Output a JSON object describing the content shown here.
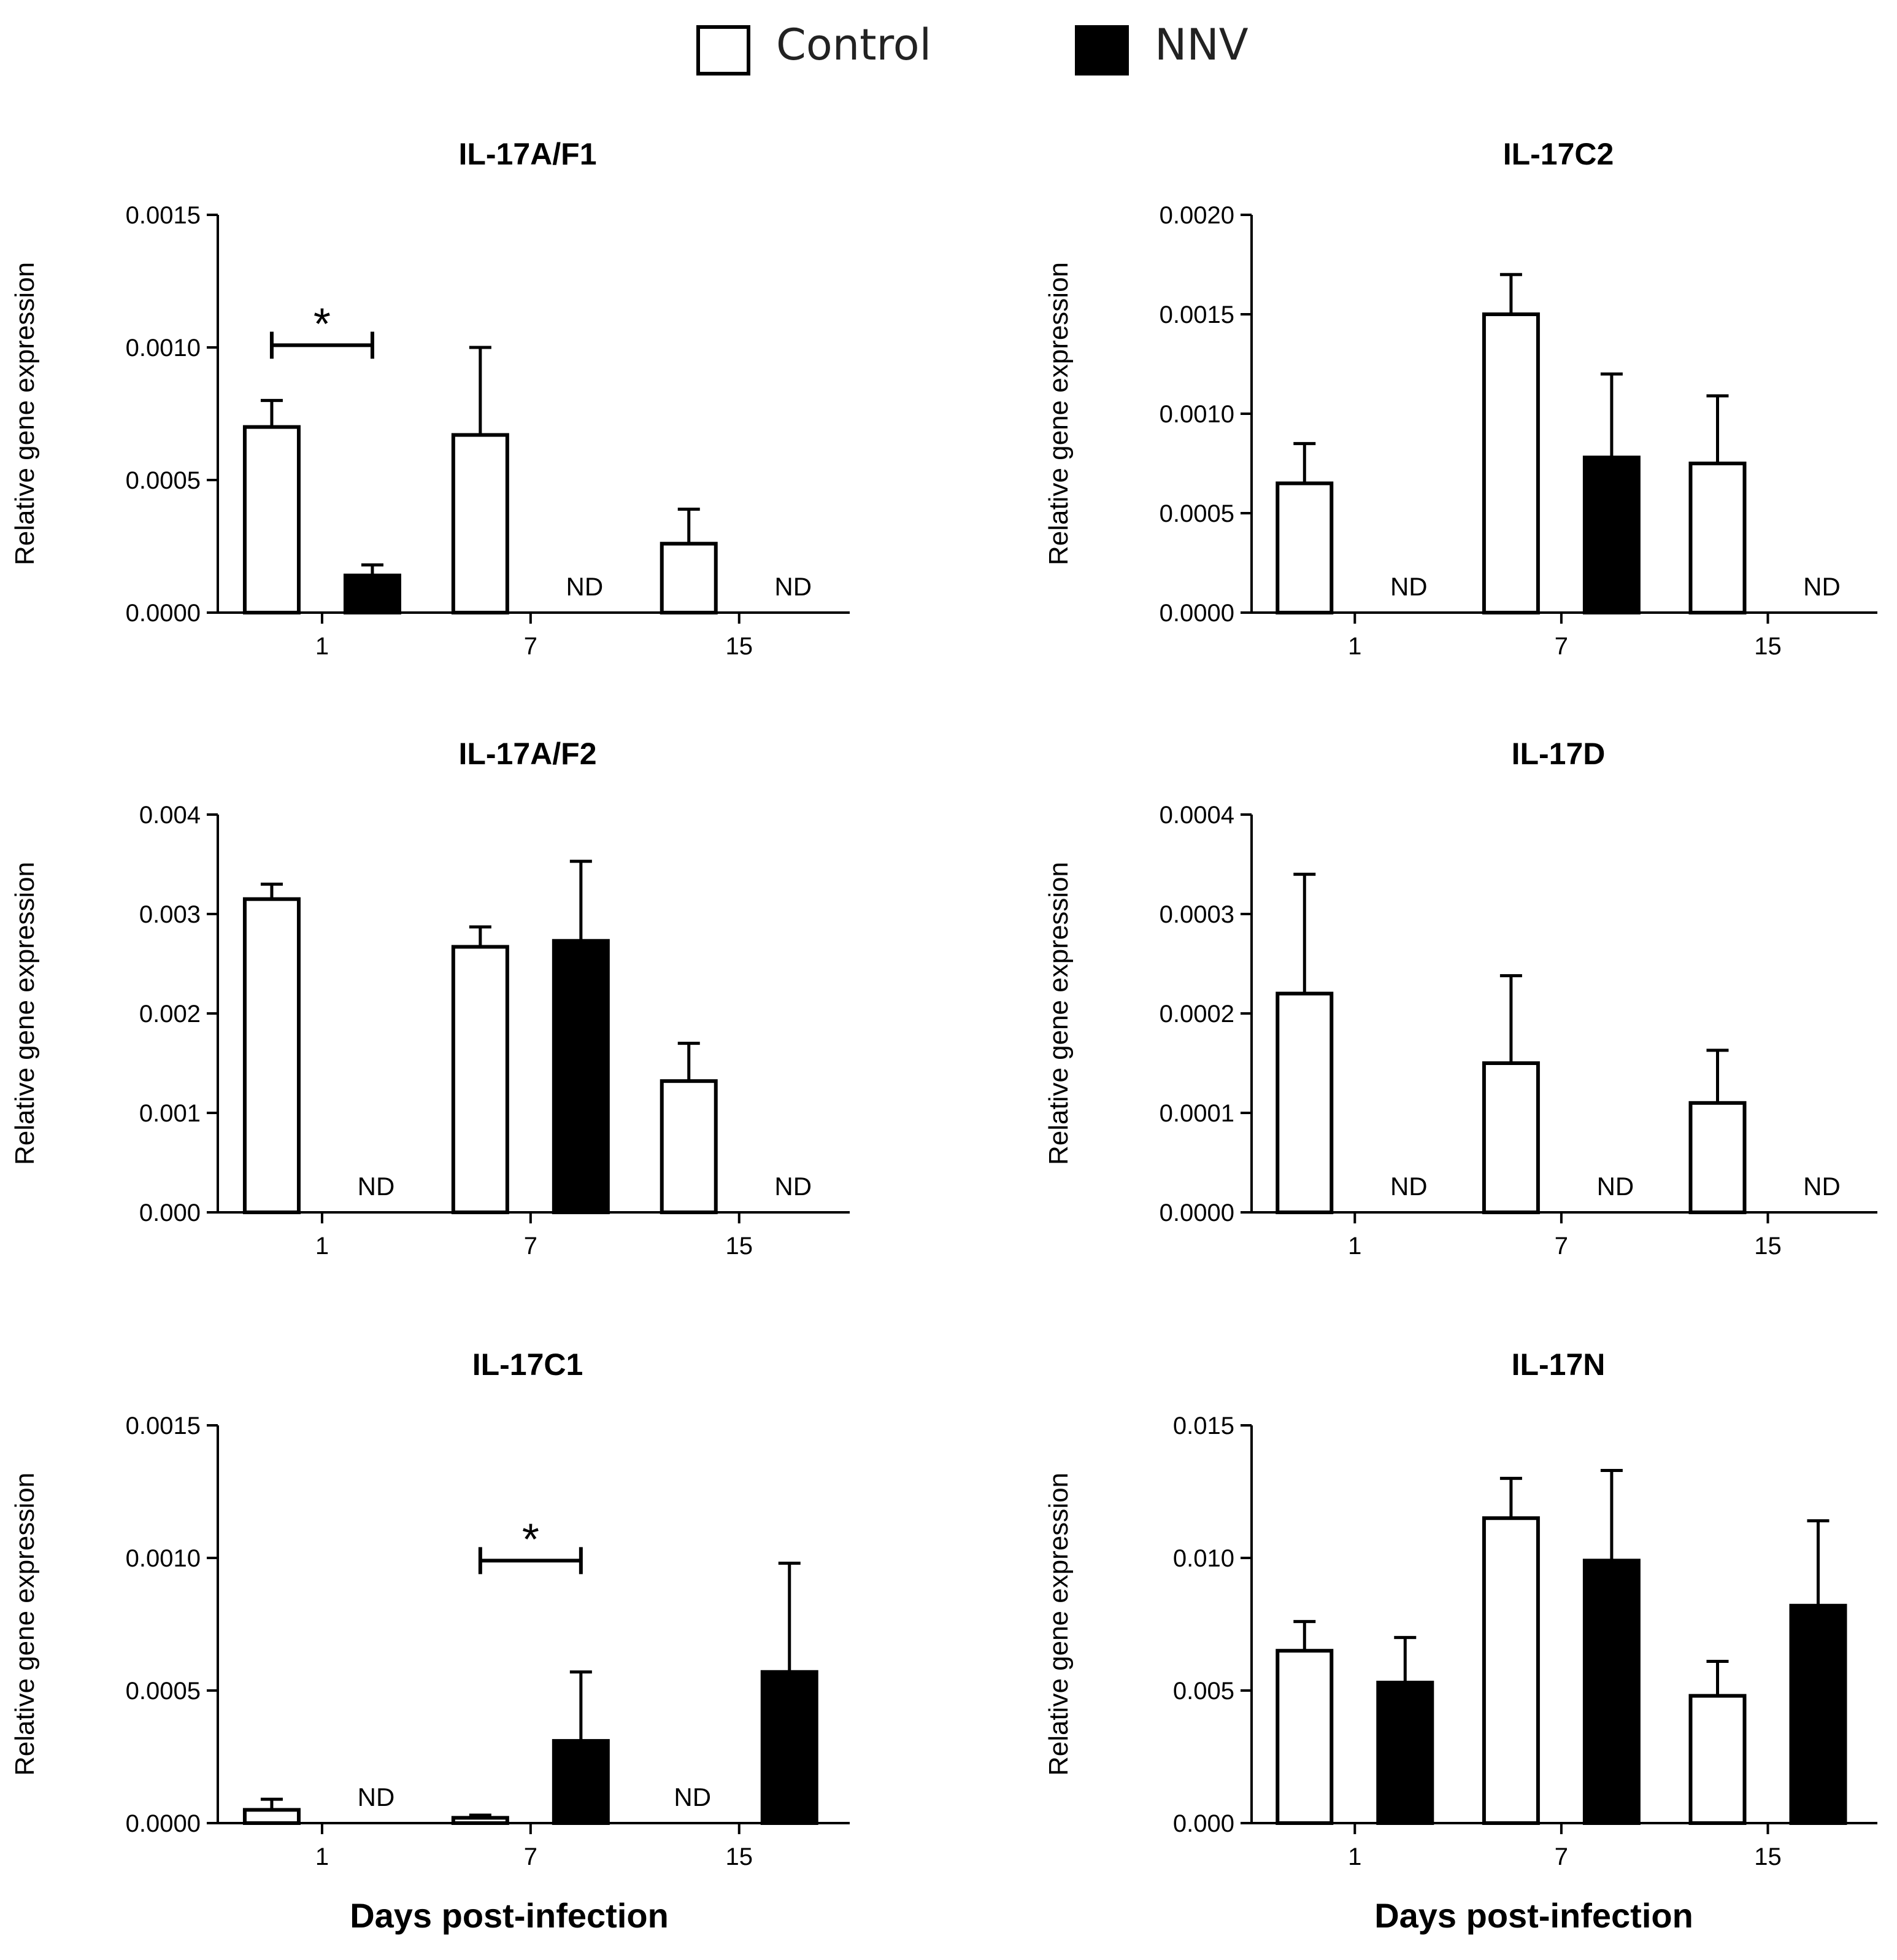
{
  "legend": [
    {
      "name": "Control",
      "fill": "#ffffff"
    },
    {
      "name": "NNV",
      "fill": "#000000"
    }
  ],
  "colors": {
    "axis": "#000000",
    "control_fill": "#ffffff",
    "nnv_fill": "#000000"
  },
  "x_axis_label": "Days post-infection",
  "chart_data": [
    {
      "type": "bar",
      "title": "IL-17A/F1",
      "ylabel": "Relative gene expression",
      "xlabel": "Days post-infection",
      "categories": [
        "1",
        "7",
        "15"
      ],
      "ylim": [
        0,
        0.0015
      ],
      "yticks": [
        "0.0000",
        "0.0005",
        "0.0010",
        "0.0015"
      ],
      "series": [
        {
          "name": "Control",
          "values": [
            0.0007,
            0.00067,
            0.00026
          ],
          "errors": [
            0.0001,
            0.00033,
            0.00013
          ],
          "nd": [
            false,
            false,
            false
          ]
        },
        {
          "name": "NNV",
          "values": [
            0.00014,
            null,
            null
          ],
          "errors": [
            4e-05,
            null,
            null
          ],
          "nd": [
            false,
            true,
            true
          ]
        }
      ],
      "nd_label": "ND",
      "annotations": [
        {
          "text": "*",
          "category": "1"
        }
      ]
    },
    {
      "type": "bar",
      "title": "IL-17C2",
      "ylabel": "Relative gene expression",
      "xlabel": "Days post-infection",
      "categories": [
        "1",
        "7",
        "15"
      ],
      "ylim": [
        0,
        0.002
      ],
      "yticks": [
        "0.0000",
        "0.0005",
        "0.0010",
        "0.0015",
        "0.0020"
      ],
      "series": [
        {
          "name": "Control",
          "values": [
            0.00065,
            0.0015,
            0.00075
          ],
          "errors": [
            0.0002,
            0.0002,
            0.00034
          ],
          "nd": [
            false,
            false,
            false
          ]
        },
        {
          "name": "NNV",
          "values": [
            null,
            0.00078,
            null
          ],
          "errors": [
            null,
            0.00042,
            null
          ],
          "nd": [
            true,
            false,
            true
          ]
        }
      ],
      "nd_label": "ND",
      "annotations": []
    },
    {
      "type": "bar",
      "title": "IL-17A/F2",
      "ylabel": "Relative gene expression",
      "xlabel": "Days post-infection",
      "categories": [
        "1",
        "7",
        "15"
      ],
      "ylim": [
        0,
        0.004
      ],
      "yticks": [
        "0.000",
        "0.001",
        "0.002",
        "0.003",
        "0.004"
      ],
      "series": [
        {
          "name": "Control",
          "values": [
            0.00315,
            0.00267,
            0.00132
          ],
          "errors": [
            0.00015,
            0.0002,
            0.00038
          ],
          "nd": [
            false,
            false,
            false
          ]
        },
        {
          "name": "NNV",
          "values": [
            null,
            0.00273,
            null
          ],
          "errors": [
            null,
            0.0008,
            null
          ],
          "nd": [
            true,
            false,
            true
          ]
        }
      ],
      "nd_label": "ND",
      "annotations": []
    },
    {
      "type": "bar",
      "title": "IL-17D",
      "ylabel": "Relative gene expression",
      "xlabel": "Days post-infection",
      "categories": [
        "1",
        "7",
        "15"
      ],
      "ylim": [
        0,
        0.0004
      ],
      "yticks": [
        "0.0000",
        "0.0001",
        "0.0002",
        "0.0003",
        "0.0004"
      ],
      "series": [
        {
          "name": "Control",
          "values": [
            0.00022,
            0.00015,
            0.00011
          ],
          "errors": [
            0.00012,
            8.8e-05,
            5.3e-05
          ],
          "nd": [
            false,
            false,
            false
          ]
        },
        {
          "name": "NNV",
          "values": [
            null,
            null,
            null
          ],
          "errors": [
            null,
            null,
            null
          ],
          "nd": [
            true,
            true,
            true
          ]
        }
      ],
      "nd_label": "ND",
      "annotations": []
    },
    {
      "type": "bar",
      "title": "IL-17C1",
      "ylabel": "Relative gene expression",
      "xlabel": "Days post-infection",
      "categories": [
        "1",
        "7",
        "15"
      ],
      "ylim": [
        0,
        0.0015
      ],
      "yticks": [
        "0.0000",
        "0.0005",
        "0.0010",
        "0.0015"
      ],
      "series": [
        {
          "name": "Control",
          "values": [
            5e-05,
            2e-05,
            null
          ],
          "errors": [
            4e-05,
            1e-05,
            null
          ],
          "nd": [
            false,
            false,
            true
          ]
        },
        {
          "name": "NNV",
          "values": [
            null,
            0.00031,
            0.00057
          ],
          "errors": [
            null,
            0.00026,
            0.00041
          ],
          "nd": [
            true,
            false,
            false
          ]
        }
      ],
      "nd_label": "ND",
      "annotations": [
        {
          "text": "*",
          "category": "7"
        }
      ]
    },
    {
      "type": "bar",
      "title": "IL-17N",
      "ylabel": "Relative gene expression",
      "xlabel": "Days post-infection",
      "categories": [
        "1",
        "7",
        "15"
      ],
      "ylim": [
        0,
        0.015
      ],
      "yticks": [
        "0.000",
        "0.005",
        "0.010",
        "0.015"
      ],
      "series": [
        {
          "name": "Control",
          "values": [
            0.0065,
            0.0115,
            0.0048
          ],
          "errors": [
            0.0011,
            0.0015,
            0.0013
          ],
          "nd": [
            false,
            false,
            false
          ]
        },
        {
          "name": "NNV",
          "values": [
            0.0053,
            0.0099,
            0.0082
          ],
          "errors": [
            0.0017,
            0.0034,
            0.0032
          ],
          "nd": [
            false,
            false,
            false
          ]
        }
      ],
      "nd_label": "ND",
      "annotations": []
    }
  ]
}
